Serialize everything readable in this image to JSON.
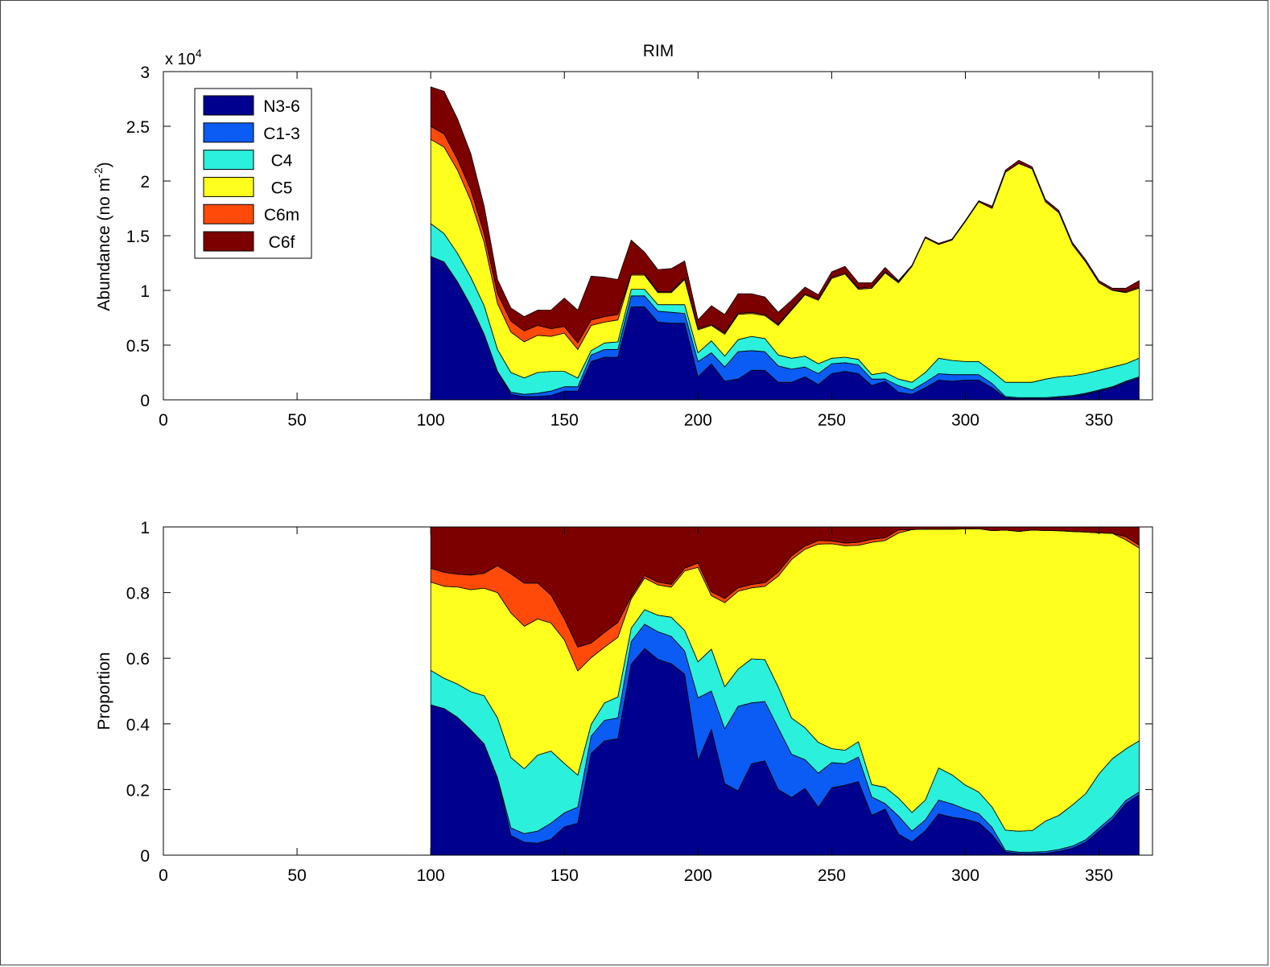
{
  "chart_data": [
    {
      "type": "area",
      "stacked": true,
      "title": "RIM",
      "ylabel_main": "Abundance (no m",
      "ylabel_sup": "-2",
      "ylabel_end": ")",
      "exponent_base": "x 10",
      "exponent_power": "4",
      "xlim": [
        0,
        370
      ],
      "ylim": [
        0,
        3
      ],
      "xticks": [
        0,
        50,
        100,
        150,
        200,
        250,
        300,
        350
      ],
      "yticks": [
        0,
        0.5,
        1,
        1.5,
        2,
        2.5,
        3
      ],
      "ytick_labels": [
        "0",
        "0.5",
        "1",
        "1.5",
        "2",
        "2.5",
        "3"
      ],
      "legend_position": "top-left",
      "x": [
        100,
        105,
        110,
        115,
        120,
        125,
        130,
        135,
        140,
        145,
        150,
        155,
        160,
        165,
        170,
        175,
        180,
        185,
        190,
        195,
        200,
        205,
        210,
        215,
        220,
        225,
        230,
        235,
        240,
        245,
        250,
        255,
        260,
        265,
        270,
        275,
        280,
        285,
        290,
        295,
        300,
        305,
        310,
        315,
        320,
        325,
        330,
        335,
        340,
        345,
        350,
        355,
        360,
        365
      ],
      "series": [
        {
          "name": "N3-6",
          "color": "#00008f",
          "values": [
            1.31,
            1.26,
            1.08,
            0.86,
            0.6,
            0.26,
            0.05,
            0.03,
            0.03,
            0.04,
            0.08,
            0.08,
            0.35,
            0.39,
            0.39,
            0.85,
            0.85,
            0.71,
            0.7,
            0.7,
            0.21,
            0.33,
            0.17,
            0.19,
            0.27,
            0.27,
            0.16,
            0.16,
            0.21,
            0.14,
            0.24,
            0.26,
            0.24,
            0.13,
            0.17,
            0.07,
            0.05,
            0.11,
            0.18,
            0.17,
            0.18,
            0.18,
            0.11,
            0.02,
            0.01,
            0.01,
            0.01,
            0.02,
            0.03,
            0.05,
            0.08,
            0.11,
            0.16,
            0.2
          ]
        },
        {
          "name": "C1-3",
          "color": "#0a5cf5",
          "values": [
            0.0,
            0.0,
            0.0,
            0.0,
            0.0,
            0.0,
            0.02,
            0.02,
            0.03,
            0.04,
            0.04,
            0.04,
            0.06,
            0.07,
            0.07,
            0.1,
            0.1,
            0.1,
            0.1,
            0.09,
            0.14,
            0.1,
            0.13,
            0.25,
            0.18,
            0.17,
            0.15,
            0.12,
            0.09,
            0.1,
            0.09,
            0.08,
            0.08,
            0.06,
            0.02,
            0.06,
            0.04,
            0.05,
            0.06,
            0.06,
            0.05,
            0.05,
            0.04,
            0.01,
            0.01,
            0.01,
            0.01,
            0.01,
            0.01,
            0.01,
            0.01,
            0.01,
            0.01,
            0.01
          ]
        },
        {
          "name": "C4",
          "color": "#2af0dc",
          "values": [
            0.3,
            0.26,
            0.26,
            0.26,
            0.26,
            0.2,
            0.18,
            0.15,
            0.19,
            0.18,
            0.14,
            0.08,
            0.04,
            0.06,
            0.07,
            0.06,
            0.06,
            0.06,
            0.07,
            0.08,
            0.08,
            0.11,
            0.1,
            0.11,
            0.13,
            0.12,
            0.1,
            0.1,
            0.1,
            0.09,
            0.05,
            0.05,
            0.05,
            0.04,
            0.06,
            0.06,
            0.07,
            0.09,
            0.14,
            0.13,
            0.12,
            0.12,
            0.11,
            0.13,
            0.14,
            0.14,
            0.17,
            0.18,
            0.18,
            0.18,
            0.18,
            0.18,
            0.16,
            0.17
          ]
        },
        {
          "name": "C5",
          "color": "#ffff1e",
          "values": [
            0.77,
            0.79,
            0.76,
            0.7,
            0.58,
            0.42,
            0.37,
            0.33,
            0.34,
            0.32,
            0.35,
            0.26,
            0.23,
            0.19,
            0.2,
            0.13,
            0.13,
            0.11,
            0.11,
            0.23,
            0.21,
            0.14,
            0.2,
            0.23,
            0.21,
            0.21,
            0.27,
            0.44,
            0.56,
            0.58,
            0.73,
            0.76,
            0.64,
            0.79,
            0.91,
            0.88,
            1.06,
            1.23,
            1.04,
            1.1,
            1.28,
            1.46,
            1.49,
            1.92,
            2.0,
            1.95,
            1.62,
            1.5,
            1.2,
            1.02,
            0.8,
            0.7,
            0.65,
            0.64
          ]
        },
        {
          "name": "C6m",
          "color": "#ff4a0a",
          "values": [
            0.12,
            0.12,
            0.1,
            0.1,
            0.08,
            0.09,
            0.1,
            0.1,
            0.09,
            0.07,
            0.06,
            0.06,
            0.05,
            0.05,
            0.05,
            0.01,
            0.01,
            0.01,
            0.01,
            0.01,
            0.01,
            0.01,
            0.01,
            0.01,
            0.01,
            0.01,
            0.01,
            0.01,
            0.01,
            0.01,
            0.01,
            0.01,
            0.01,
            0.01,
            0.01,
            0.01,
            0.0,
            0.0,
            0.0,
            0.0,
            0.0,
            0.0,
            0.0,
            0.0,
            0.0,
            0.0,
            0.0,
            0.0,
            0.0,
            0.0,
            0.0,
            0.0,
            0.01,
            0.01
          ]
        },
        {
          "name": "C6f",
          "color": "#7d0000",
          "values": [
            0.36,
            0.39,
            0.37,
            0.33,
            0.25,
            0.13,
            0.12,
            0.13,
            0.14,
            0.17,
            0.26,
            0.3,
            0.4,
            0.36,
            0.32,
            0.31,
            0.2,
            0.2,
            0.21,
            0.16,
            0.08,
            0.17,
            0.17,
            0.18,
            0.17,
            0.16,
            0.11,
            0.08,
            0.06,
            0.04,
            0.05,
            0.06,
            0.05,
            0.04,
            0.04,
            0.01,
            0.01,
            0.01,
            0.01,
            0.01,
            0.01,
            0.01,
            0.02,
            0.02,
            0.03,
            0.02,
            0.02,
            0.02,
            0.02,
            0.02,
            0.02,
            0.02,
            0.03,
            0.06
          ]
        }
      ]
    },
    {
      "type": "area",
      "stacked": true,
      "ylabel": "Proportion",
      "xlim": [
        0,
        370
      ],
      "ylim": [
        0,
        1
      ],
      "xticks": [
        0,
        50,
        100,
        150,
        200,
        250,
        300,
        350
      ],
      "yticks": [
        0,
        0.2,
        0.4,
        0.6,
        0.8,
        1
      ],
      "ytick_labels": [
        "0",
        "0.2",
        "0.4",
        "0.6",
        "0.8",
        "1"
      ],
      "normalized_from": 0
    }
  ]
}
